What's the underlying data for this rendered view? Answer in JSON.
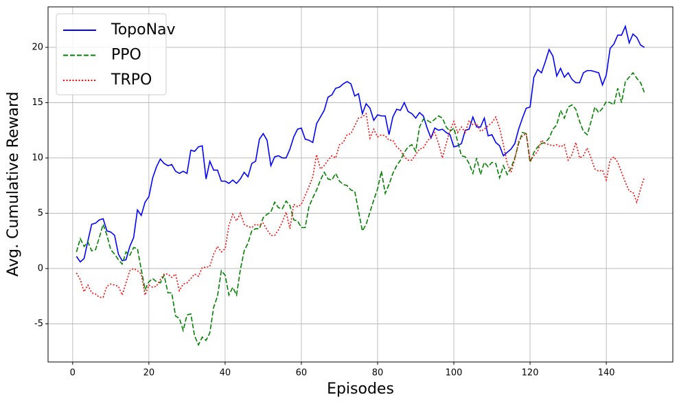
{
  "chart_data": {
    "type": "line",
    "xlabel": "Episodes",
    "ylabel": "Avg. Cumulative Reward",
    "x": [
      1,
      2,
      3,
      4,
      5,
      6,
      7,
      8,
      9,
      10,
      11,
      12,
      13,
      14,
      15,
      16,
      17,
      18,
      19,
      20,
      21,
      22,
      23,
      24,
      25,
      26,
      27,
      28,
      29,
      30,
      31,
      32,
      33,
      34,
      35,
      36,
      37,
      38,
      39,
      40,
      41,
      42,
      43,
      44,
      45,
      46,
      47,
      48,
      49,
      50,
      51,
      52,
      53,
      54,
      55,
      56,
      57,
      58,
      59,
      60,
      61,
      62,
      63,
      64,
      65,
      66,
      67,
      68,
      69,
      70,
      71,
      72,
      73,
      74,
      75,
      76,
      77,
      78,
      79,
      80,
      81,
      82,
      83,
      84,
      85,
      86,
      87,
      88,
      89,
      90,
      91,
      92,
      93,
      94,
      95,
      96,
      97,
      98,
      99,
      100,
      101,
      102,
      103,
      104,
      105,
      106,
      107,
      108,
      109,
      110,
      111,
      112,
      113,
      114,
      115,
      116,
      117,
      118,
      119,
      120,
      121,
      122,
      123,
      124,
      125,
      126,
      127,
      128,
      129,
      130,
      131,
      132,
      133,
      134,
      135,
      136,
      137,
      138,
      139,
      140,
      141,
      142,
      143,
      144,
      145,
      146,
      147,
      148,
      149,
      150
    ],
    "series": [
      {
        "name": "TopoNav",
        "color": "#0000ff",
        "linestyle": "solid",
        "values": [
          1.1,
          0.6,
          0.9,
          2.5,
          4.0,
          4.1,
          4.4,
          4.5,
          3.4,
          3.3,
          3.0,
          1.3,
          0.7,
          0.8,
          2.0,
          2.8,
          5.3,
          4.8,
          6.0,
          6.5,
          8.2,
          9.2,
          9.9,
          9.5,
          9.3,
          9.4,
          8.8,
          8.6,
          8.8,
          8.6,
          10.7,
          10.6,
          11.0,
          11.1,
          8.1,
          9.7,
          8.9,
          8.9,
          7.9,
          7.9,
          7.7,
          8.0,
          7.7,
          8.1,
          8.7,
          8.3,
          9.5,
          9.7,
          11.7,
          12.2,
          11.6,
          9.3,
          10.1,
          10.2,
          10.0,
          10.0,
          10.8,
          11.9,
          12.6,
          12.7,
          11.7,
          11.6,
          11.4,
          13.1,
          13.7,
          14.3,
          15.5,
          15.7,
          16.3,
          16.4,
          16.7,
          16.9,
          16.7,
          15.6,
          15.8,
          14.0,
          14.9,
          14.5,
          13.4,
          13.9,
          13.8,
          13.8,
          12.1,
          13.7,
          14.4,
          14.3,
          15.0,
          14.2,
          14.0,
          13.6,
          14.1,
          13.8,
          12.7,
          11.8,
          12.7,
          12.5,
          12.6,
          12.3,
          12.1,
          11.0,
          11.1,
          11.3,
          12.5,
          12.6,
          13.7,
          12.8,
          12.8,
          13.6,
          12.0,
          12.1,
          11.4,
          11.1,
          10.2,
          10.5,
          10.8,
          11.3,
          12.6,
          13.6,
          14.5,
          14.6,
          17.3,
          18.0,
          17.7,
          18.7,
          19.8,
          19.2,
          17.4,
          18.1,
          17.3,
          17.7,
          17.1,
          16.8,
          16.8,
          17.7,
          17.9,
          17.9,
          17.8,
          17.7,
          16.6,
          17.5,
          19.9,
          20.3,
          21.1,
          21.1,
          21.9,
          20.4,
          21.2,
          20.9,
          20.2,
          20.0
        ]
      },
      {
        "name": "PPO",
        "color": "#008000",
        "linestyle": "dashed",
        "values": [
          1.5,
          2.7,
          2.0,
          2.4,
          1.6,
          1.7,
          2.8,
          4.0,
          3.0,
          1.7,
          1.3,
          0.8,
          0.4,
          1.5,
          1.2,
          1.9,
          1.8,
          -0.1,
          -1.9,
          -1.2,
          -0.9,
          -1.2,
          -1.3,
          -0.6,
          -2.2,
          -2.2,
          -4.3,
          -4.5,
          -5.6,
          -4.2,
          -4.1,
          -6.1,
          -6.9,
          -6.2,
          -6.5,
          -5.8,
          -3.5,
          -2.5,
          -0.2,
          -0.6,
          -2.4,
          -1.7,
          -2.4,
          -0.1,
          1.6,
          2.3,
          3.4,
          3.6,
          3.6,
          4.6,
          4.9,
          5.1,
          6.0,
          5.5,
          5.4,
          6.1,
          5.7,
          4.4,
          4.3,
          3.7,
          3.7,
          5.6,
          6.4,
          7.1,
          8.0,
          8.7,
          8.1,
          8.0,
          8.6,
          7.9,
          7.6,
          7.5,
          7.1,
          7.0,
          5.2,
          3.4,
          4.0,
          5.1,
          6.2,
          7.2,
          8.8,
          6.8,
          7.6,
          8.6,
          9.3,
          9.8,
          10.5,
          11.0,
          11.2,
          10.6,
          12.8,
          13.5,
          13.4,
          13.2,
          13.5,
          13.8,
          13.6,
          12.8,
          12.4,
          12.7,
          11.5,
          10.2,
          10.1,
          9.5,
          8.6,
          10.0,
          8.5,
          9.6,
          9.2,
          9.6,
          9.5,
          8.2,
          9.3,
          8.5,
          9.1,
          10.0,
          11.3,
          12.3,
          12.2,
          9.6,
          10.5,
          11.0,
          11.3,
          11.4,
          11.8,
          12.6,
          13.0,
          14.3,
          13.6,
          14.6,
          14.8,
          14.4,
          13.3,
          12.4,
          12.1,
          13.3,
          14.6,
          14.1,
          14.5,
          15.1,
          15.0,
          14.8,
          16.3,
          15.0,
          16.9,
          17.3,
          17.7,
          17.2,
          16.8,
          15.9
        ]
      },
      {
        "name": "TRPO",
        "color": "#ff0000",
        "linestyle": "dotted",
        "values": [
          -0.4,
          -1.0,
          -2.1,
          -1.5,
          -2.2,
          -2.3,
          -2.6,
          -2.6,
          -1.6,
          -1.4,
          -1.5,
          -1.6,
          -2.4,
          -1.3,
          -0.2,
          0.0,
          -0.2,
          -0.5,
          -2.4,
          -1.5,
          -1.7,
          -1.6,
          -1.0,
          -0.5,
          -0.5,
          -0.8,
          -0.5,
          -2.0,
          -1.4,
          -1.3,
          -0.9,
          -0.5,
          -0.7,
          0.1,
          0.1,
          0.2,
          1.3,
          2.0,
          1.5,
          1.8,
          3.9,
          4.9,
          4.3,
          5.0,
          4.0,
          3.8,
          3.7,
          4.0,
          3.9,
          4.1,
          3.5,
          3.0,
          3.0,
          3.5,
          4.2,
          5.1,
          3.6,
          5.8,
          5.6,
          5.8,
          6.6,
          7.4,
          8.3,
          10.3,
          9.0,
          9.3,
          9.8,
          10.2,
          10.0,
          11.2,
          11.4,
          12.1,
          12.2,
          12.9,
          13.6,
          13.7,
          14.0,
          11.8,
          12.6,
          11.9,
          12.1,
          12.0,
          11.6,
          11.6,
          11.0,
          10.7,
          10.1,
          9.8,
          9.8,
          10.3,
          10.8,
          10.9,
          11.5,
          11.9,
          12.3,
          11.3,
          10.0,
          11.3,
          12.5,
          13.3,
          12.3,
          12.8,
          12.3,
          13.4,
          13.0,
          13.1,
          12.4,
          12.6,
          12.9,
          13.2,
          13.7,
          12.7,
          11.2,
          9.5,
          8.7,
          9.9,
          11.5,
          12.0,
          12.2,
          9.7,
          10.2,
          10.6,
          11.6,
          11.3,
          11.2,
          11.1,
          11.2,
          11.0,
          11.2,
          9.8,
          10.3,
          11.4,
          10.0,
          10.2,
          10.9,
          10.0,
          9.0,
          8.8,
          8.9,
          8.0,
          9.8,
          10.1,
          9.6,
          8.7,
          7.8,
          7.0,
          6.9,
          6.0,
          7.2,
          8.3
        ]
      }
    ],
    "xlim": [
      -6.45,
      157.45
    ],
    "ylim": [
      -8.45,
      23.66
    ],
    "xticks": [
      0,
      20,
      40,
      60,
      80,
      100,
      120,
      140
    ],
    "yticks": [
      -5,
      0,
      5,
      10,
      15,
      20
    ],
    "grid": true,
    "legend": "upper-left"
  }
}
